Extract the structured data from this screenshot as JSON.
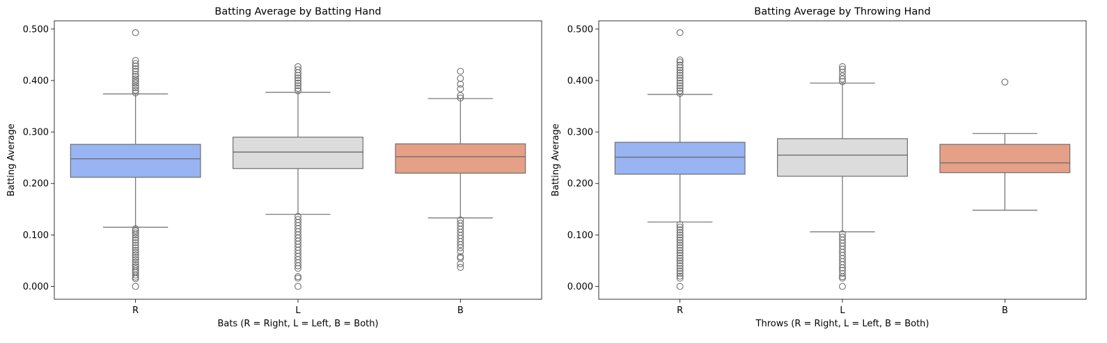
{
  "chart_data": [
    {
      "type": "box",
      "title": "Batting Average by Batting Hand",
      "xlabel": "Bats (R = Right, L = Left, B = Both)",
      "ylabel": "Batting Average",
      "categories": [
        "R",
        "L",
        "B"
      ],
      "ylim": [
        -0.025,
        0.516
      ],
      "yticks": [
        0.0,
        0.1,
        0.2,
        0.3,
        0.4,
        0.5
      ],
      "ytick_labels": [
        "0.000",
        "0.100",
        "0.200",
        "0.300",
        "0.400",
        "0.500"
      ],
      "grid": false,
      "boxes": [
        {
          "category": "R",
          "color": "#98b4f3",
          "whisker_low": 0.115,
          "q1": 0.212,
          "median": 0.248,
          "q3": 0.276,
          "whisker_high": 0.374,
          "outliers_low": [
            0.0,
            0.015,
            0.018,
            0.022,
            0.027,
            0.03,
            0.034,
            0.038,
            0.042,
            0.047,
            0.052,
            0.056,
            0.061,
            0.066,
            0.07,
            0.075,
            0.08,
            0.085,
            0.09,
            0.095,
            0.1,
            0.104,
            0.108,
            0.112
          ],
          "outliers_high": [
            0.376,
            0.381,
            0.386,
            0.39,
            0.395,
            0.399,
            0.403,
            0.408,
            0.412,
            0.418,
            0.423,
            0.428,
            0.433,
            0.439,
            0.493
          ]
        },
        {
          "category": "L",
          "color": "#dcdcdc",
          "whisker_low": 0.14,
          "q1": 0.229,
          "median": 0.261,
          "q3": 0.29,
          "whisker_high": 0.377,
          "outliers_low": [
            0.0,
            0.016,
            0.019,
            0.035,
            0.04,
            0.046,
            0.052,
            0.058,
            0.064,
            0.07,
            0.076,
            0.082,
            0.088,
            0.094,
            0.1,
            0.106,
            0.112,
            0.118,
            0.124,
            0.13,
            0.136
          ],
          "outliers_high": [
            0.38,
            0.385,
            0.39,
            0.395,
            0.4,
            0.405,
            0.41,
            0.415,
            0.421,
            0.427
          ]
        },
        {
          "category": "B",
          "color": "#e5a087",
          "whisker_low": 0.133,
          "q1": 0.22,
          "median": 0.252,
          "q3": 0.277,
          "whisker_high": 0.365,
          "outliers_low": [
            0.037,
            0.044,
            0.055,
            0.058,
            0.068,
            0.075,
            0.081,
            0.087,
            0.093,
            0.099,
            0.105,
            0.111,
            0.117,
            0.123,
            0.129
          ],
          "outliers_high": [
            0.366,
            0.371,
            0.384,
            0.393,
            0.404,
            0.418
          ]
        }
      ]
    },
    {
      "type": "box",
      "title": "Batting Average by Throwing Hand",
      "xlabel": "Throws (R = Right, L = Left, B = Both)",
      "ylabel": "Batting Average",
      "categories": [
        "R",
        "L",
        "B"
      ],
      "ylim": [
        -0.025,
        0.516
      ],
      "yticks": [
        0.0,
        0.1,
        0.2,
        0.3,
        0.4,
        0.5
      ],
      "ytick_labels": [
        "0.000",
        "0.100",
        "0.200",
        "0.300",
        "0.400",
        "0.500"
      ],
      "grid": false,
      "boxes": [
        {
          "category": "R",
          "color": "#98b4f3",
          "whisker_low": 0.125,
          "q1": 0.218,
          "median": 0.251,
          "q3": 0.28,
          "whisker_high": 0.373,
          "outliers_low": [
            0.0,
            0.016,
            0.02,
            0.025,
            0.03,
            0.035,
            0.04,
            0.045,
            0.05,
            0.055,
            0.06,
            0.065,
            0.07,
            0.075,
            0.08,
            0.085,
            0.09,
            0.095,
            0.1,
            0.105,
            0.11,
            0.115,
            0.12
          ],
          "outliers_high": [
            0.375,
            0.38,
            0.385,
            0.39,
            0.395,
            0.4,
            0.405,
            0.41,
            0.415,
            0.42,
            0.425,
            0.43,
            0.436,
            0.44,
            0.493
          ]
        },
        {
          "category": "L",
          "color": "#dcdcdc",
          "whisker_low": 0.106,
          "q1": 0.214,
          "median": 0.255,
          "q3": 0.287,
          "whisker_high": 0.395,
          "outliers_low": [
            0.0,
            0.016,
            0.019,
            0.025,
            0.031,
            0.036,
            0.042,
            0.048,
            0.054,
            0.06,
            0.066,
            0.072,
            0.078,
            0.084,
            0.09,
            0.096,
            0.102
          ],
          "outliers_high": [
            0.398,
            0.403,
            0.409,
            0.416,
            0.422,
            0.427
          ]
        },
        {
          "category": "B",
          "color": "#e5a087",
          "whisker_low": 0.148,
          "q1": 0.221,
          "median": 0.24,
          "q3": 0.276,
          "whisker_high": 0.297,
          "outliers_low": [],
          "outliers_high": [
            0.397
          ]
        }
      ]
    }
  ]
}
